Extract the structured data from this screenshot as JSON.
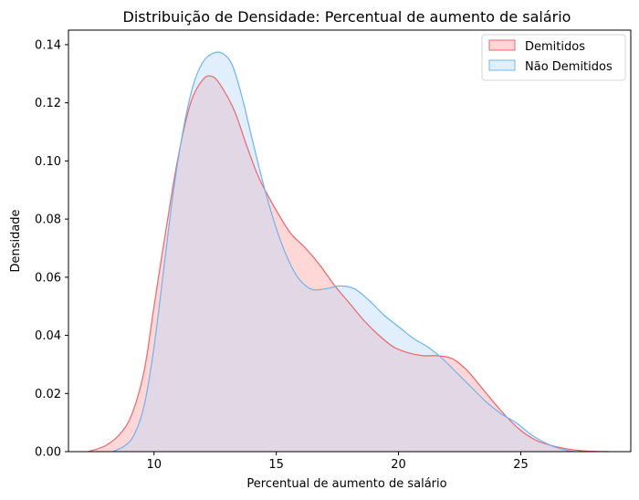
{
  "chart_data": {
    "type": "area",
    "title": "Distribuição de Densidade: Percentual de aumento de salário",
    "xlabel": "Percentual de aumento de salário",
    "ylabel": "Densidade",
    "xlim": [
      6.5,
      29.5
    ],
    "ylim": [
      0,
      0.145
    ],
    "xticks": [
      10,
      15,
      20,
      25
    ],
    "yticks": [
      0.0,
      0.02,
      0.04,
      0.06,
      0.08,
      0.1,
      0.12,
      0.14
    ],
    "ytick_labels": [
      "0.00",
      "0.02",
      "0.04",
      "0.06",
      "0.08",
      "0.10",
      "0.12",
      "0.14"
    ],
    "grid": false,
    "legend_position": "top-right",
    "series": [
      {
        "name": "Demitidos",
        "color": "#f0646a",
        "fill": "#ff9a9a",
        "x": [
          7.3,
          8.0,
          8.6,
          9.1,
          9.6,
          10.0,
          10.5,
          11.0,
          11.5,
          12.0,
          12.4,
          12.8,
          13.3,
          13.8,
          14.3,
          15.0,
          15.6,
          16.2,
          16.8,
          17.4,
          18.0,
          18.6,
          19.2,
          19.8,
          20.4,
          21.0,
          21.6,
          22.2,
          22.8,
          23.5,
          24.2,
          24.9,
          25.6,
          26.3,
          27.0,
          27.7,
          28.6
        ],
        "y": [
          0.0,
          0.002,
          0.006,
          0.013,
          0.028,
          0.05,
          0.077,
          0.102,
          0.12,
          0.128,
          0.129,
          0.125,
          0.117,
          0.105,
          0.094,
          0.083,
          0.075,
          0.07,
          0.064,
          0.057,
          0.051,
          0.045,
          0.04,
          0.036,
          0.034,
          0.033,
          0.033,
          0.032,
          0.028,
          0.021,
          0.014,
          0.008,
          0.004,
          0.002,
          0.0008,
          0.0002,
          0.0
        ]
      },
      {
        "name": "Não Demitidos",
        "color": "#6cb4f0",
        "fill": "#b3d7fa",
        "x": [
          8.3,
          8.8,
          9.2,
          9.6,
          10.0,
          10.4,
          10.8,
          11.2,
          11.6,
          12.0,
          12.4,
          12.8,
          13.2,
          13.6,
          14.0,
          14.6,
          15.2,
          15.8,
          16.4,
          17.0,
          17.6,
          18.2,
          18.8,
          19.4,
          20.0,
          20.6,
          21.2,
          21.8,
          22.4,
          23.0,
          23.6,
          24.2,
          24.8,
          25.4,
          26.0,
          26.6,
          27.2
        ],
        "y": [
          0.0,
          0.002,
          0.006,
          0.016,
          0.036,
          0.063,
          0.09,
          0.111,
          0.126,
          0.134,
          0.137,
          0.137,
          0.133,
          0.122,
          0.108,
          0.088,
          0.072,
          0.061,
          0.056,
          0.056,
          0.057,
          0.056,
          0.052,
          0.047,
          0.043,
          0.039,
          0.036,
          0.032,
          0.027,
          0.022,
          0.017,
          0.013,
          0.01,
          0.006,
          0.003,
          0.001,
          0.0
        ]
      }
    ]
  }
}
